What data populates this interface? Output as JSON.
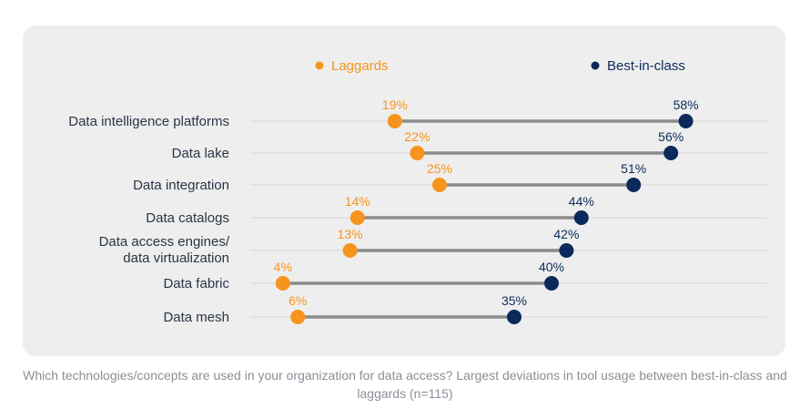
{
  "chart_data": {
    "type": "dumbbell",
    "title": "",
    "series": [
      {
        "name": "Laggards",
        "color": "#f7941d"
      },
      {
        "name": "Best-in-class",
        "color": "#0b2a5b"
      }
    ],
    "categories": [
      [
        "Data intelligence platforms"
      ],
      [
        "Data lake"
      ],
      [
        "Data integration"
      ],
      [
        "Data catalogs"
      ],
      [
        "Data access engines/",
        "data virtualization"
      ],
      [
        "Data fabric"
      ],
      [
        "Data mesh"
      ]
    ],
    "laggards": [
      19,
      22,
      25,
      14,
      13,
      4,
      6
    ],
    "best_in_class": [
      58,
      56,
      51,
      44,
      42,
      40,
      35
    ],
    "value_suffix": "%",
    "line_color": "#8c8c8c",
    "legend_position": "top"
  },
  "caption": "Which technologies/concepts are used in your organization for data access? Largest deviations in tool usage between best-in-class  and laggards (n=115)"
}
